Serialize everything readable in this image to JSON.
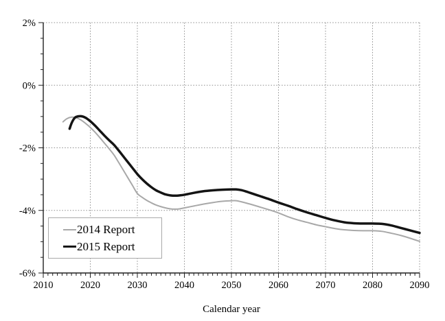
{
  "colors": {
    "background": "#ffffff",
    "grid": "#8c8c8c",
    "axis": "#1f1f1f",
    "tick_text": "#000000",
    "legend_border": "#a9a9a9",
    "series_2014": "#a8a8a8",
    "series_2015": "#141414"
  },
  "chart_data": {
    "type": "line",
    "title": "",
    "xlabel": "Calendar year",
    "ylabel": "",
    "xlim": [
      2010,
      2090
    ],
    "ylim": [
      -6,
      2
    ],
    "x_major_ticks": [
      2010,
      2020,
      2030,
      2040,
      2050,
      2060,
      2070,
      2080,
      2090
    ],
    "x_tick_labels": [
      "2010",
      "2020",
      "2030",
      "2040",
      "2050",
      "2060",
      "2070",
      "2080",
      "2090"
    ],
    "x_minor_tick_step": 1,
    "y_major_ticks": [
      2,
      0,
      -2,
      -4,
      -6
    ],
    "y_tick_labels": [
      "2%",
      "0%",
      "-2%",
      "-4%",
      "-6%"
    ],
    "y_minor_tick_step": 0.5,
    "grid": "dotted lines at every major tick, plot framed by dotted top and right gridlines",
    "legend_position": "lower-left",
    "series": [
      {
        "name": "2014 Report",
        "color": "#a8a8a8",
        "width": 2,
        "points": [
          [
            2014.2,
            -1.17
          ],
          [
            2015,
            -1.07
          ],
          [
            2016,
            -1.02
          ],
          [
            2017,
            -1.04
          ],
          [
            2018,
            -1.11
          ],
          [
            2019,
            -1.22
          ],
          [
            2020,
            -1.35
          ],
          [
            2021,
            -1.5
          ],
          [
            2022,
            -1.67
          ],
          [
            2023,
            -1.85
          ],
          [
            2024,
            -2.03
          ],
          [
            2025,
            -2.22
          ],
          [
            2026,
            -2.46
          ],
          [
            2027,
            -2.71
          ],
          [
            2028,
            -2.96
          ],
          [
            2029,
            -3.21
          ],
          [
            2030,
            -3.46
          ],
          [
            2031,
            -3.58
          ],
          [
            2032,
            -3.68
          ],
          [
            2033,
            -3.76
          ],
          [
            2034,
            -3.83
          ],
          [
            2035,
            -3.88
          ],
          [
            2036,
            -3.92
          ],
          [
            2037,
            -3.95
          ],
          [
            2038,
            -3.96
          ],
          [
            2039,
            -3.95
          ],
          [
            2040,
            -3.92
          ],
          [
            2042,
            -3.86
          ],
          [
            2044,
            -3.8
          ],
          [
            2046,
            -3.75
          ],
          [
            2048,
            -3.71
          ],
          [
            2050,
            -3.69
          ],
          [
            2051,
            -3.69
          ],
          [
            2052,
            -3.72
          ],
          [
            2054,
            -3.8
          ],
          [
            2056,
            -3.89
          ],
          [
            2058,
            -3.98
          ],
          [
            2060,
            -4.08
          ],
          [
            2062,
            -4.2
          ],
          [
            2064,
            -4.3
          ],
          [
            2066,
            -4.38
          ],
          [
            2068,
            -4.46
          ],
          [
            2070,
            -4.52
          ],
          [
            2072,
            -4.58
          ],
          [
            2074,
            -4.62
          ],
          [
            2076,
            -4.64
          ],
          [
            2078,
            -4.65
          ],
          [
            2080,
            -4.65
          ],
          [
            2082,
            -4.67
          ],
          [
            2084,
            -4.73
          ],
          [
            2086,
            -4.8
          ],
          [
            2088,
            -4.89
          ],
          [
            2090,
            -4.99
          ]
        ]
      },
      {
        "name": "2015 Report",
        "color": "#141414",
        "width": 3.5,
        "points": [
          [
            2015.6,
            -1.39
          ],
          [
            2016,
            -1.22
          ],
          [
            2016.5,
            -1.08
          ],
          [
            2017,
            -1.01
          ],
          [
            2018,
            -0.99
          ],
          [
            2019,
            -1.04
          ],
          [
            2020,
            -1.15
          ],
          [
            2021,
            -1.29
          ],
          [
            2022,
            -1.45
          ],
          [
            2023,
            -1.61
          ],
          [
            2024,
            -1.76
          ],
          [
            2025,
            -1.9
          ],
          [
            2026,
            -2.08
          ],
          [
            2027,
            -2.27
          ],
          [
            2028,
            -2.46
          ],
          [
            2029,
            -2.65
          ],
          [
            2030,
            -2.84
          ],
          [
            2031,
            -3.0
          ],
          [
            2032,
            -3.14
          ],
          [
            2033,
            -3.26
          ],
          [
            2034,
            -3.36
          ],
          [
            2035,
            -3.43
          ],
          [
            2036,
            -3.49
          ],
          [
            2037,
            -3.52
          ],
          [
            2038,
            -3.53
          ],
          [
            2039,
            -3.52
          ],
          [
            2040,
            -3.5
          ],
          [
            2042,
            -3.44
          ],
          [
            2044,
            -3.39
          ],
          [
            2046,
            -3.36
          ],
          [
            2048,
            -3.34
          ],
          [
            2050,
            -3.33
          ],
          [
            2051,
            -3.33
          ],
          [
            2052,
            -3.35
          ],
          [
            2053,
            -3.39
          ],
          [
            2054,
            -3.44
          ],
          [
            2056,
            -3.54
          ],
          [
            2058,
            -3.64
          ],
          [
            2060,
            -3.75
          ],
          [
            2062,
            -3.85
          ],
          [
            2064,
            -3.96
          ],
          [
            2066,
            -4.06
          ],
          [
            2068,
            -4.15
          ],
          [
            2070,
            -4.24
          ],
          [
            2072,
            -4.32
          ],
          [
            2074,
            -4.38
          ],
          [
            2076,
            -4.41
          ],
          [
            2078,
            -4.42
          ],
          [
            2080,
            -4.42
          ],
          [
            2082,
            -4.43
          ],
          [
            2084,
            -4.48
          ],
          [
            2086,
            -4.56
          ],
          [
            2088,
            -4.64
          ],
          [
            2090,
            -4.72
          ]
        ]
      }
    ]
  },
  "legend": {
    "items": [
      {
        "label": "2014 Report"
      },
      {
        "label": "2015 Report"
      }
    ]
  }
}
